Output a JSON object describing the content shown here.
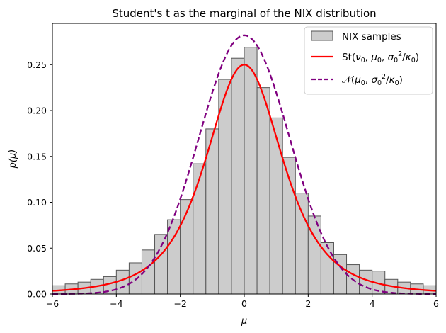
{
  "chart_data": {
    "type": "bar",
    "title": "Student's t as the marginal of the NIX distribution",
    "xlabel": "μ",
    "ylabel": "p(μ)",
    "xlim": [
      -6,
      6
    ],
    "ylim": [
      0,
      0.295
    ],
    "xticks": [
      -6,
      -4,
      -2,
      0,
      2,
      4,
      6
    ],
    "xtick_labels": [
      "−6",
      "−4",
      "−2",
      "0",
      "2",
      "4",
      "6"
    ],
    "yticks": [
      0,
      0.05,
      0.1,
      0.15,
      0.2,
      0.25
    ],
    "ytick_labels": [
      "0.00",
      "0.05",
      "0.10",
      "0.15",
      "0.20",
      "0.25"
    ],
    "grid": false,
    "legend_position": "top-right",
    "histogram": {
      "name": "NIX samples",
      "bin_width": 0.4,
      "bin_starts": [
        -6.0,
        -5.6,
        -5.2,
        -4.8,
        -4.4,
        -4.0,
        -3.6,
        -3.2,
        -2.8,
        -2.4,
        -2.0,
        -1.6,
        -1.2,
        -0.8,
        -0.4,
        0.0,
        0.4,
        0.8,
        1.2,
        1.6,
        2.0,
        2.4,
        2.8,
        3.2,
        3.6,
        4.0,
        4.4,
        4.8,
        5.2,
        5.6
      ],
      "values": [
        0.009,
        0.011,
        0.013,
        0.016,
        0.019,
        0.026,
        0.034,
        0.048,
        0.065,
        0.081,
        0.103,
        0.142,
        0.18,
        0.234,
        0.257,
        0.269,
        0.225,
        0.192,
        0.149,
        0.11,
        0.085,
        0.056,
        0.043,
        0.032,
        0.026,
        0.025,
        0.016,
        0.013,
        0.011,
        0.009
      ],
      "fill_color": "#cccccc",
      "edge_color": "#555555"
    },
    "series": [
      {
        "name": "St(ν₀, μ₀, σ₀²/κ₀)",
        "label_parts": [
          "St(",
          "ν",
          "0",
          ", ",
          "μ",
          "0",
          ", ",
          "σ",
          "0",
          "2",
          "/",
          "κ",
          "0",
          ")"
        ],
        "kind": "student_t",
        "peak": 0.25,
        "scale": 1.265,
        "dof": 3,
        "color": "#ff0000",
        "line_style": "solid"
      },
      {
        "name": "𝒩(μ₀, σ₀²/κ₀)",
        "label_parts": [
          "𝒩(",
          "μ",
          "0",
          ", ",
          "σ",
          "0",
          "2",
          "/",
          "κ",
          "0",
          ")"
        ],
        "kind": "normal",
        "peak": 0.282,
        "sigma": 1.414,
        "color": "#800080",
        "line_style": "dashed"
      }
    ]
  }
}
